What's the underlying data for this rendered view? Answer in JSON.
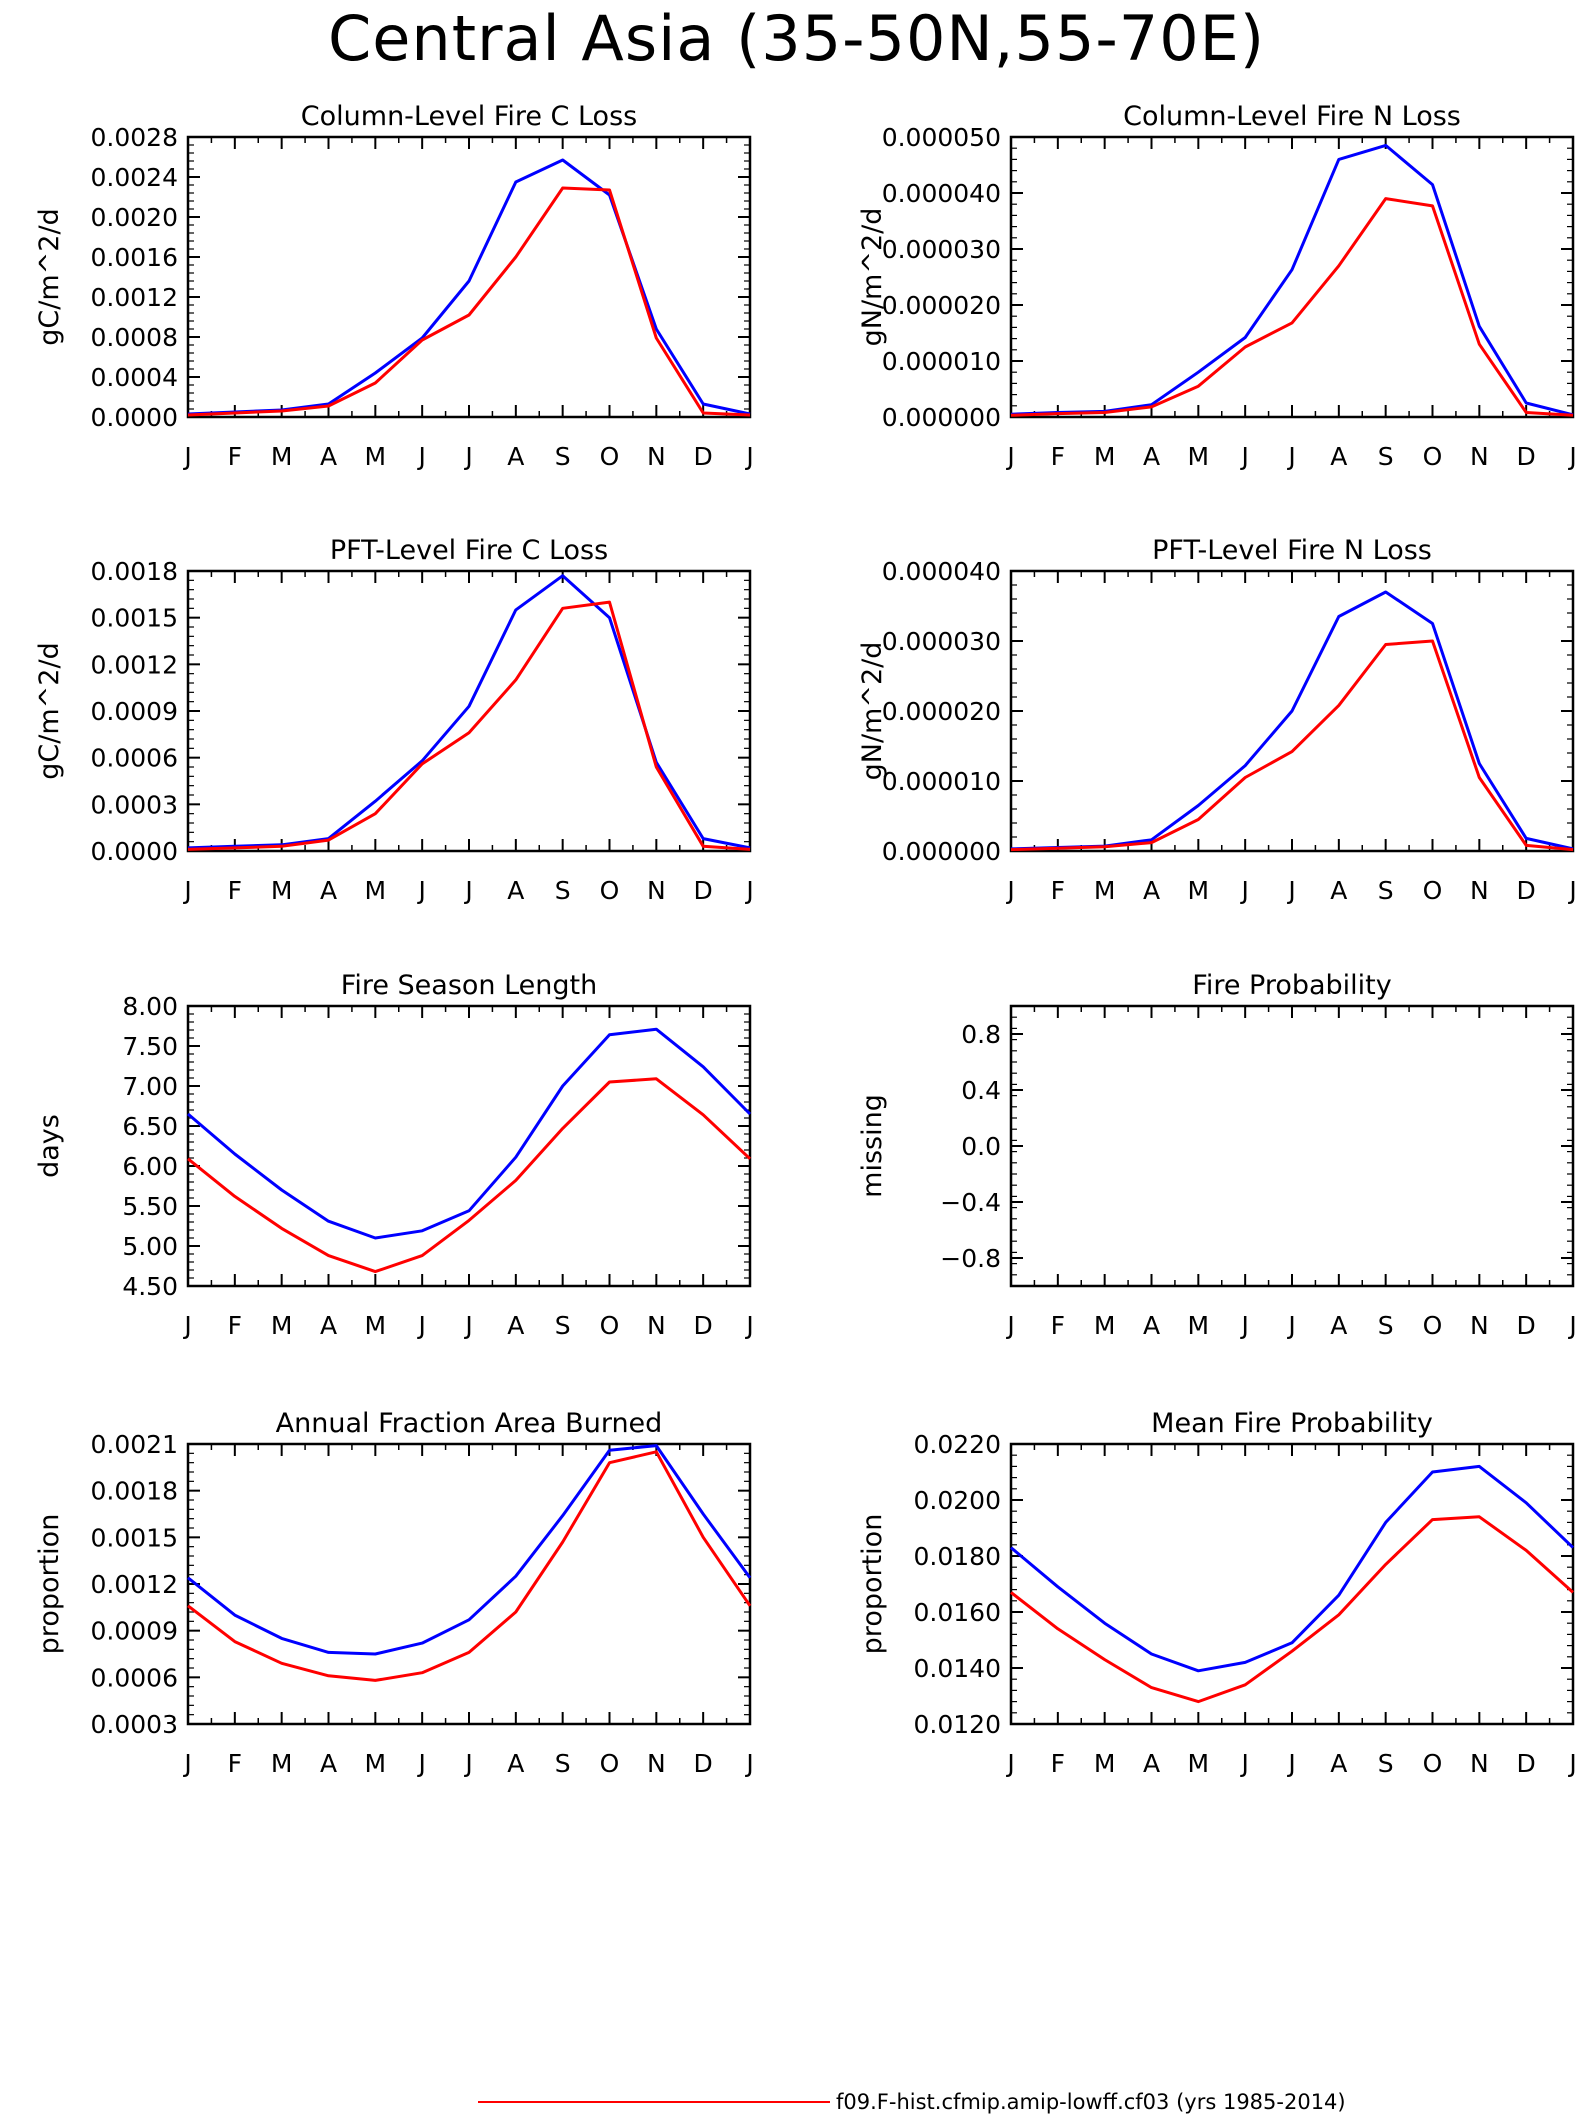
{
  "page_title": "Central Asia (35-50N,55-70E)",
  "colors": {
    "series_blue": "#0000ff",
    "series_red": "#ff0000"
  },
  "months": [
    "J",
    "F",
    "M",
    "A",
    "M",
    "J",
    "J",
    "A",
    "S",
    "O",
    "N",
    "D",
    "J"
  ],
  "legend": {
    "label": "f09.F-hist.cfmip.amip-lowff.cf03 (yrs 1985-2014)",
    "color": "#ff0000"
  },
  "chart_data": [
    {
      "type": "line",
      "title": "Column-Level Fire C Loss",
      "ylabel": "gC/m^2/d",
      "categories": [
        "J",
        "F",
        "M",
        "A",
        "M",
        "J",
        "J",
        "A",
        "S",
        "O",
        "N",
        "D",
        "J"
      ],
      "ylim": [
        0,
        0.0028
      ],
      "yticks": [
        "0.0000",
        "0.0004",
        "0.0008",
        "0.0012",
        "0.0016",
        "0.0020",
        "0.0024",
        "0.0028"
      ],
      "series": [
        {
          "color": "#0000ff",
          "values": [
            3e-05,
            5e-05,
            7e-05,
            0.00013,
            0.00044,
            0.00079,
            0.00136,
            0.00235,
            0.00257,
            0.00222,
            0.00088,
            0.00013,
            3e-05
          ]
        },
        {
          "color": "#ff0000",
          "values": [
            2e-05,
            4e-05,
            6e-05,
            0.00011,
            0.00034,
            0.00077,
            0.00102,
            0.0016,
            0.00229,
            0.00227,
            0.00079,
            4e-05,
            2e-05
          ]
        }
      ]
    },
    {
      "type": "line",
      "title": "Column-Level Fire N Loss",
      "ylabel": "gN/m^2/d",
      "categories": [
        "J",
        "F",
        "M",
        "A",
        "M",
        "J",
        "J",
        "A",
        "S",
        "O",
        "N",
        "D",
        "J"
      ],
      "ylim": [
        0,
        5e-05
      ],
      "yticks": [
        "0.000000",
        "0.000010",
        "0.000020",
        "0.000030",
        "0.000040",
        "0.000050"
      ],
      "series": [
        {
          "color": "#0000ff",
          "values": [
            5e-07,
            8e-07,
            1e-06,
            2.2e-06,
            8e-06,
            1.42e-05,
            2.63e-05,
            4.6e-05,
            4.85e-05,
            4.15e-05,
            1.62e-05,
            2.5e-06,
            4e-07
          ]
        },
        {
          "color": "#ff0000",
          "values": [
            3e-07,
            6e-07,
            8e-07,
            1.8e-06,
            5.5e-06,
            1.25e-05,
            1.68e-05,
            2.7e-05,
            3.9e-05,
            3.77e-05,
            1.3e-05,
            8e-07,
            3e-07
          ]
        }
      ]
    },
    {
      "type": "line",
      "title": "PFT-Level Fire C Loss",
      "ylabel": "gC/m^2/d",
      "categories": [
        "J",
        "F",
        "M",
        "A",
        "M",
        "J",
        "J",
        "A",
        "S",
        "O",
        "N",
        "D",
        "J"
      ],
      "ylim": [
        0,
        0.0018
      ],
      "yticks": [
        "0.0000",
        "0.0003",
        "0.0006",
        "0.0009",
        "0.0012",
        "0.0015",
        "0.0018"
      ],
      "series": [
        {
          "color": "#0000ff",
          "values": [
            2e-05,
            3e-05,
            4e-05,
            8e-05,
            0.00032,
            0.00058,
            0.00093,
            0.00155,
            0.00177,
            0.0015,
            0.00057,
            8e-05,
            2e-05
          ]
        },
        {
          "color": "#ff0000",
          "values": [
            1e-05,
            2e-05,
            3e-05,
            7e-05,
            0.00024,
            0.00056,
            0.00076,
            0.0011,
            0.00156,
            0.0016,
            0.00054,
            3e-05,
            1e-05
          ]
        }
      ]
    },
    {
      "type": "line",
      "title": "PFT-Level Fire N Loss",
      "ylabel": "gN/m^2/d",
      "categories": [
        "J",
        "F",
        "M",
        "A",
        "M",
        "J",
        "J",
        "A",
        "S",
        "O",
        "N",
        "D",
        "J"
      ],
      "ylim": [
        0,
        4e-05
      ],
      "yticks": [
        "0.000000",
        "0.000010",
        "0.000020",
        "0.000030",
        "0.000040"
      ],
      "series": [
        {
          "color": "#0000ff",
          "values": [
            3e-07,
            5e-07,
            7e-07,
            1.6e-06,
            6.5e-06,
            1.22e-05,
            2e-05,
            3.35e-05,
            3.7e-05,
            3.25e-05,
            1.25e-05,
            1.8e-06,
            3e-07
          ]
        },
        {
          "color": "#ff0000",
          "values": [
            2e-07,
            4e-07,
            6e-07,
            1.2e-06,
            4.5e-06,
            1.05e-05,
            1.42e-05,
            2.08e-05,
            2.95e-05,
            3e-05,
            1.05e-05,
            8e-07,
            2e-07
          ]
        }
      ]
    },
    {
      "type": "line",
      "title": "Fire Season Length",
      "ylabel": "days",
      "categories": [
        "J",
        "F",
        "M",
        "A",
        "M",
        "J",
        "J",
        "A",
        "S",
        "O",
        "N",
        "D",
        "J"
      ],
      "ylim": [
        4.5,
        8.0
      ],
      "yticks": [
        "4.50",
        "5.00",
        "5.50",
        "6.00",
        "6.50",
        "7.00",
        "7.50",
        "8.00"
      ],
      "series": [
        {
          "color": "#0000ff",
          "values": [
            6.65,
            6.15,
            5.7,
            5.31,
            5.1,
            5.19,
            5.44,
            6.11,
            7.0,
            7.64,
            7.71,
            7.24,
            6.65
          ]
        },
        {
          "color": "#ff0000",
          "values": [
            6.09,
            5.62,
            5.22,
            4.88,
            4.68,
            4.88,
            5.32,
            5.82,
            6.47,
            7.05,
            7.09,
            6.64,
            6.09
          ]
        }
      ]
    },
    {
      "type": "line",
      "title": "Fire Probability",
      "ylabel": "missing",
      "categories": [
        "J",
        "F",
        "M",
        "A",
        "M",
        "J",
        "J",
        "A",
        "S",
        "O",
        "N",
        "D",
        "J"
      ],
      "ylim": [
        -1.0,
        1.0
      ],
      "yticks": [
        "−0.8",
        "−0.4",
        "0.0",
        "0.4",
        "0.8"
      ],
      "ytick_values": [
        -0.8,
        -0.4,
        0.0,
        0.4,
        0.8
      ],
      "series": []
    },
    {
      "type": "line",
      "title": "Annual Fraction Area Burned",
      "ylabel": "proportion",
      "categories": [
        "J",
        "F",
        "M",
        "A",
        "M",
        "J",
        "J",
        "A",
        "S",
        "O",
        "N",
        "D",
        "J"
      ],
      "ylim": [
        0.0003,
        0.0021
      ],
      "yticks": [
        "0.0003",
        "0.0006",
        "0.0009",
        "0.0012",
        "0.0015",
        "0.0018",
        "0.0021"
      ],
      "series": [
        {
          "color": "#0000ff",
          "values": [
            0.00124,
            0.001,
            0.00085,
            0.00076,
            0.00075,
            0.00082,
            0.00097,
            0.00125,
            0.00164,
            0.00206,
            0.00209,
            0.00165,
            0.00124
          ]
        },
        {
          "color": "#ff0000",
          "values": [
            0.00106,
            0.00083,
            0.00069,
            0.00061,
            0.00058,
            0.00063,
            0.00076,
            0.00102,
            0.00147,
            0.00198,
            0.00205,
            0.0015,
            0.00106
          ]
        }
      ]
    },
    {
      "type": "line",
      "title": "Mean Fire Probability",
      "ylabel": "proportion",
      "categories": [
        "J",
        "F",
        "M",
        "A",
        "M",
        "J",
        "J",
        "A",
        "S",
        "O",
        "N",
        "D",
        "J"
      ],
      "ylim": [
        0.012,
        0.022
      ],
      "yticks": [
        "0.0120",
        "0.0140",
        "0.0160",
        "0.0180",
        "0.0200",
        "0.0220"
      ],
      "series": [
        {
          "color": "#0000ff",
          "values": [
            0.0183,
            0.0169,
            0.0156,
            0.0145,
            0.0139,
            0.0142,
            0.0149,
            0.0166,
            0.0192,
            0.021,
            0.0212,
            0.0199,
            0.0183
          ]
        },
        {
          "color": "#ff0000",
          "values": [
            0.0167,
            0.0154,
            0.0143,
            0.0133,
            0.0128,
            0.0134,
            0.0146,
            0.0159,
            0.0177,
            0.0193,
            0.0194,
            0.0182,
            0.0167
          ]
        }
      ]
    }
  ]
}
